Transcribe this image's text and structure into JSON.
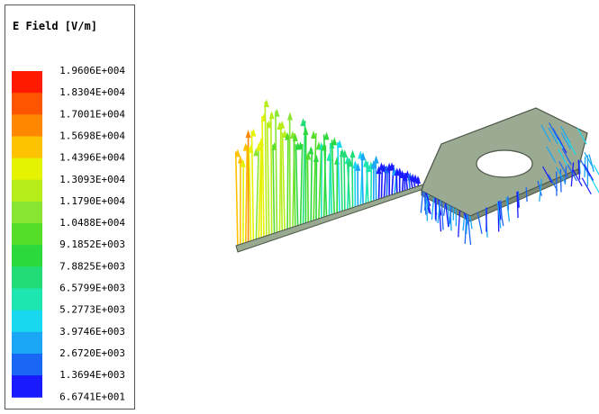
{
  "legend": {
    "title": "E Field [V/m]",
    "labels": [
      "1.9606E+004",
      "1.8304E+004",
      "1.7001E+004",
      "1.5698E+004",
      "1.4396E+004",
      "1.3093E+004",
      "1.1790E+004",
      "1.0488E+004",
      "9.1852E+003",
      "7.8825E+003",
      "6.5799E+003",
      "5.2773E+003",
      "3.9746E+003",
      "2.6720E+003",
      "1.3694E+003",
      "6.6741E+001"
    ],
    "colors": [
      "#ff1a00",
      "#ff5500",
      "#ff8800",
      "#ffc200",
      "#e5f200",
      "#b7ee1a",
      "#88e632",
      "#55dd2a",
      "#2bd93c",
      "#22dd77",
      "#1ee6b0",
      "#18d8f0",
      "#1aa6f5",
      "#1a66f5",
      "#1a1aff"
    ]
  }
}
